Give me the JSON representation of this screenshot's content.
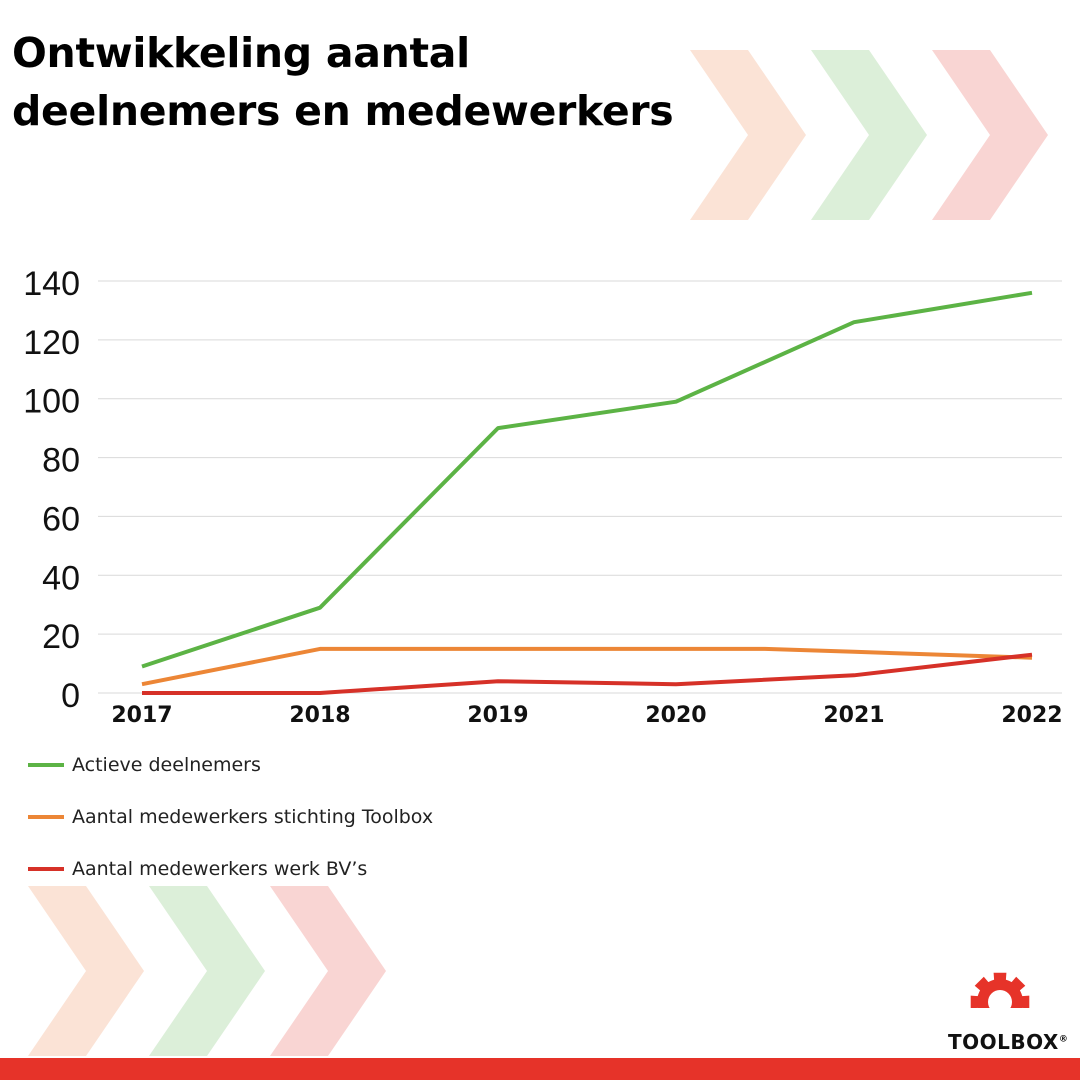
{
  "title_line1": "Ontwikkeling aantal",
  "title_line2": "deelnemers en medewerkers",
  "colors": {
    "green": "#5cb345",
    "orange": "#ec8636",
    "red": "#d63128",
    "grid": "#d9d9d9",
    "chevron_orange": "#fbe3d6",
    "chevron_green": "#dcefd9",
    "chevron_red": "#f9d5d3",
    "brand_red": "#e63329"
  },
  "logo": {
    "text": "TOOLBOX",
    "mark": "®",
    "icon": "gear-icon"
  },
  "chart_data": {
    "type": "line",
    "x": [
      2017,
      2018,
      2019,
      2020,
      2021,
      2022
    ],
    "ylim": [
      0,
      140
    ],
    "yticks": [
      0,
      20,
      40,
      60,
      80,
      100,
      120,
      140
    ],
    "grid": true,
    "legend_position": "bottom-left",
    "series": [
      {
        "name": "Actieve deelnemers",
        "color": "#5cb345",
        "points": [
          [
            2017,
            9
          ],
          [
            2018,
            29
          ],
          [
            2019,
            90
          ],
          [
            2020,
            99
          ],
          [
            2021,
            126
          ],
          [
            2022,
            136
          ]
        ]
      },
      {
        "name": "Aantal medewerkers stichting Toolbox",
        "color": "#ec8636",
        "points": [
          [
            2017,
            3
          ],
          [
            2018,
            15
          ],
          [
            2019,
            15
          ],
          [
            2020,
            15
          ],
          [
            2020.5,
            15
          ],
          [
            2021,
            14
          ],
          [
            2022,
            12
          ]
        ]
      },
      {
        "name": "Aantal medewerkers werk BV’s",
        "color": "#d63128",
        "points": [
          [
            2017,
            0
          ],
          [
            2018,
            0
          ],
          [
            2019,
            4
          ],
          [
            2020,
            3
          ],
          [
            2021,
            6
          ],
          [
            2022,
            13
          ]
        ]
      }
    ]
  }
}
